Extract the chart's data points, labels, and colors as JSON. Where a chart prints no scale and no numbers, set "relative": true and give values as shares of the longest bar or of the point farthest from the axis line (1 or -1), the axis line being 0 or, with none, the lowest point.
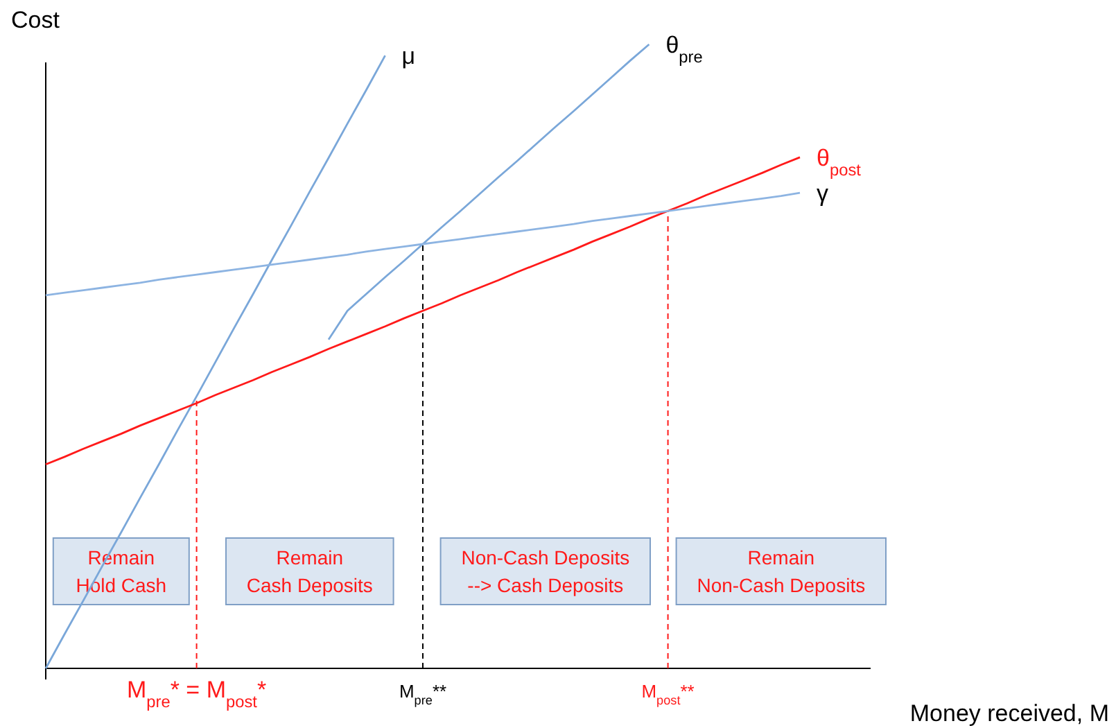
{
  "chart_data": {
    "type": "line",
    "relative": true,
    "xlabel": "Money received, M",
    "ylabel": "Cost",
    "legend": false,
    "categories": [
      null,
      null,
      null,
      null,
      null,
      null,
      null,
      null,
      "M$_{pre}$* = M$_{post}$*",
      null,
      null,
      null,
      null,
      null,
      null,
      null,
      null,
      null,
      null,
      null,
      "M$_{pre}$**",
      null,
      null,
      null,
      null,
      null,
      null,
      null,
      null,
      null,
      null,
      null,
      null,
      "M$_{post}$**",
      null,
      null,
      null,
      null,
      null,
      null,
      null
    ],
    "series": [
      {
        "name": "μ",
        "color": "#7aa7d9",
        "values": [
          0,
          0.055,
          0.109,
          0.164,
          0.218,
          0.273,
          0.327,
          0.382,
          0.436,
          0.491,
          0.546,
          0.6,
          0.655,
          0.709,
          0.764,
          0.818,
          0.873,
          0.927,
          0.982,
          null,
          null,
          null,
          null,
          null,
          null,
          null,
          null,
          null,
          null,
          null,
          null,
          null,
          null,
          null,
          null,
          null,
          null,
          null,
          null,
          null,
          null
        ]
      },
      {
        "name": "θ$_{pre}$",
        "color": "#7aa7d9",
        "values": [
          null,
          null,
          null,
          null,
          null,
          null,
          null,
          null,
          null,
          null,
          null,
          null,
          null,
          null,
          null,
          0.527,
          0.573,
          0.6,
          0.627,
          0.653,
          0.68,
          0.707,
          0.733,
          0.76,
          0.787,
          0.813,
          0.84,
          0.867,
          0.893,
          0.92,
          0.947,
          0.974,
          1.0,
          null,
          null,
          null,
          null,
          null,
          null,
          null,
          null
        ]
      },
      {
        "name": "θ$_{post}$",
        "color": "#ff1a1a",
        "values": [
          0.327,
          0.339,
          0.352,
          0.364,
          0.376,
          0.389,
          0.401,
          0.413,
          0.425,
          0.438,
          0.45,
          0.462,
          0.475,
          0.487,
          0.499,
          0.512,
          0.524,
          0.536,
          0.548,
          0.561,
          0.573,
          0.585,
          0.598,
          0.61,
          0.622,
          0.635,
          0.647,
          0.659,
          0.671,
          0.684,
          0.696,
          0.708,
          0.721,
          0.733,
          0.745,
          0.758,
          0.77,
          0.782,
          0.794,
          0.807,
          0.819
        ]
      },
      {
        "name": "γ",
        "color": "#8db4e2",
        "values": [
          0.598,
          0.602,
          0.606,
          0.61,
          0.614,
          0.618,
          0.623,
          0.627,
          0.631,
          0.635,
          0.639,
          0.643,
          0.647,
          0.651,
          0.655,
          0.659,
          0.663,
          0.668,
          0.672,
          0.676,
          0.68,
          0.684,
          0.688,
          0.692,
          0.696,
          0.7,
          0.704,
          0.708,
          0.712,
          0.717,
          0.721,
          0.725,
          0.729,
          0.733,
          0.737,
          0.741,
          0.745,
          0.749,
          0.753,
          0.757,
          0.762
        ]
      }
    ],
    "ref_lines": [
      {
        "axis": "x",
        "value": "M$_{pre}$* = M$_{post}$*",
        "color": "#ff1a1a",
        "line_style": "dashed"
      },
      {
        "axis": "x",
        "value": "M$_{pre}$**",
        "color": "#000000",
        "line_style": "dashed"
      },
      {
        "axis": "x",
        "value": "M$_{post}$**",
        "color": "#ff1a1a",
        "line_style": "dashed"
      }
    ],
    "annotations": [
      "Remain\nHold Cash",
      "Remain\nCash Deposits",
      "Non-Cash Deposits\n--> Cash Deposits",
      "Remain\nNon-Cash Deposits"
    ]
  }
}
